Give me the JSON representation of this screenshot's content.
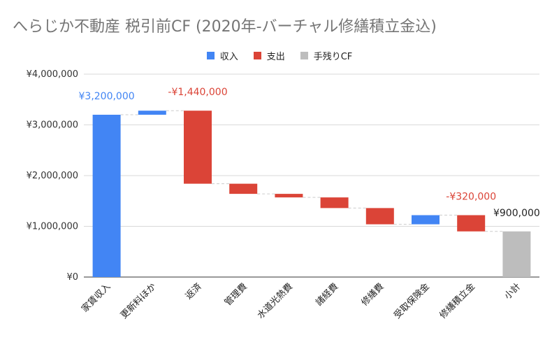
{
  "title": "へらじか不動産 税引前CF (2020年-バーチャル修繕積立金込)",
  "legend": [
    {
      "label": "収入",
      "color": "#4285f4"
    },
    {
      "label": "支出",
      "color": "#db4437"
    },
    {
      "label": "手残りCF",
      "color": "#bdbdbd"
    }
  ],
  "chart_data": {
    "type": "bar",
    "subtype": "waterfall",
    "y_tick_labels": [
      "¥0",
      "¥1,000,000",
      "¥2,000,000",
      "¥3,000,000",
      "¥4,000,000"
    ],
    "ylim": [
      0,
      4000000
    ],
    "grid": true,
    "legend_position": "top",
    "categories": [
      "家賃収入",
      "更新料ほか",
      "返済",
      "管理費",
      "水道光熱費",
      "諸経費",
      "修繕費",
      "受取保険金",
      "修繕積立金",
      "小計"
    ],
    "bars": [
      {
        "category": "家賃収入",
        "kind": "収入",
        "start": 0,
        "end": 3200000
      },
      {
        "category": "更新料ほか",
        "kind": "収入",
        "start": 3200000,
        "end": 3280000
      },
      {
        "category": "返済",
        "kind": "支出",
        "start": 3280000,
        "end": 1840000
      },
      {
        "category": "管理費",
        "kind": "支出",
        "start": 1840000,
        "end": 1640000
      },
      {
        "category": "水道光熱費",
        "kind": "支出",
        "start": 1640000,
        "end": 1570000
      },
      {
        "category": "諸経費",
        "kind": "支出",
        "start": 1570000,
        "end": 1360000
      },
      {
        "category": "修繕費",
        "kind": "支出",
        "start": 1360000,
        "end": 1040000
      },
      {
        "category": "受取保険金",
        "kind": "収入",
        "start": 1040000,
        "end": 1220000
      },
      {
        "category": "修繕積立金",
        "kind": "支出",
        "start": 1220000,
        "end": 900000
      },
      {
        "category": "小計",
        "kind": "手残りCF",
        "start": 0,
        "end": 900000
      }
    ],
    "data_labels": [
      {
        "category": "家賃収入",
        "text": "¥3,200,000",
        "color": "#4285f4"
      },
      {
        "category": "返済",
        "text": "-¥1,440,000",
        "color": "#db4437"
      },
      {
        "category": "修繕積立金",
        "text": "-¥320,000",
        "color": "#db4437"
      },
      {
        "category": "小計",
        "text": "¥900,000",
        "color": "#222222"
      }
    ]
  }
}
